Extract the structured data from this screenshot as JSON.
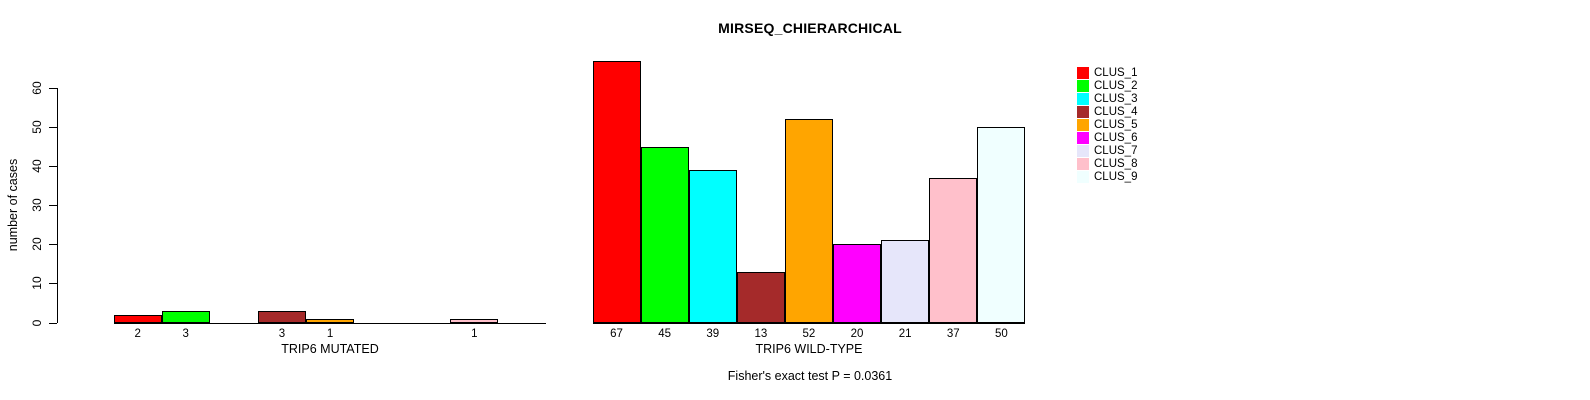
{
  "title": "MIRSEQ_CHIERARCHICAL",
  "footer": "Fisher's exact test P = 0.0361",
  "legend": {
    "items": [
      {
        "label": "CLUS_1",
        "color": "#FF0000"
      },
      {
        "label": "CLUS_2",
        "color": "#00FF00"
      },
      {
        "label": "CLUS_3",
        "color": "#00FFFF"
      },
      {
        "label": "CLUS_4",
        "color": "#A52A2A"
      },
      {
        "label": "CLUS_5",
        "color": "#FFA500"
      },
      {
        "label": "CLUS_6",
        "color": "#FF00FF"
      },
      {
        "label": "CLUS_7",
        "color": "#E6E6FA"
      },
      {
        "label": "CLUS_8",
        "color": "#FFC0CB"
      },
      {
        "label": "CLUS_9",
        "color": "#F0FFFF"
      }
    ]
  },
  "chart_data": [
    {
      "type": "bar",
      "title": "MIRSEQ_CHIERARCHICAL",
      "xlabel": "TRIP6 MUTATED",
      "ylabel": "number of cases",
      "ylim": [
        0,
        60
      ],
      "yticks": [
        0,
        10,
        20,
        30,
        40,
        50,
        60
      ],
      "grid": false,
      "legend_position": "right",
      "categories": [
        "CLUS_1",
        "CLUS_2",
        "CLUS_3",
        "CLUS_4",
        "CLUS_5",
        "CLUS_6",
        "CLUS_7",
        "CLUS_8",
        "CLUS_9"
      ],
      "values": [
        2,
        3,
        0,
        3,
        1,
        0,
        0,
        1,
        0
      ],
      "bar_labels": [
        "2",
        "3",
        "",
        "3",
        "1",
        "",
        "",
        "1",
        ""
      ],
      "colors": [
        "#FF0000",
        "#00FF00",
        "#00FFFF",
        "#A52A2A",
        "#FFA500",
        "#FF00FF",
        "#E6E6FA",
        "#FFC0CB",
        "#F0FFFF"
      ]
    },
    {
      "type": "bar",
      "title": "MIRSEQ_CHIERARCHICAL",
      "xlabel": "TRIP6 WILD-TYPE",
      "ylabel": "number of cases",
      "ylim": [
        0,
        60
      ],
      "yticks": [
        0,
        10,
        20,
        30,
        40,
        50,
        60
      ],
      "grid": false,
      "legend_position": "right",
      "categories": [
        "CLUS_1",
        "CLUS_2",
        "CLUS_3",
        "CLUS_4",
        "CLUS_5",
        "CLUS_6",
        "CLUS_7",
        "CLUS_8",
        "CLUS_9"
      ],
      "values": [
        67,
        45,
        39,
        13,
        52,
        20,
        21,
        37,
        50
      ],
      "bar_labels": [
        "67",
        "45",
        "39",
        "13",
        "52",
        "20",
        "21",
        "37",
        "50"
      ],
      "colors": [
        "#FF0000",
        "#00FF00",
        "#00FFFF",
        "#A52A2A",
        "#FFA500",
        "#FF00FF",
        "#E6E6FA",
        "#FFC0CB",
        "#F0FFFF"
      ]
    }
  ]
}
